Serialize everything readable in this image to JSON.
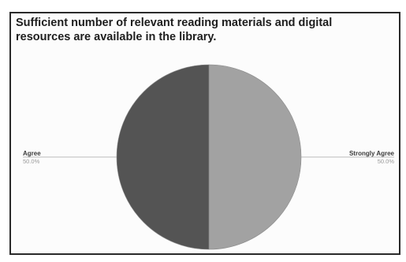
{
  "chart_data": {
    "type": "pie",
    "title": "Sufficient number of relevant reading materials and digital resources are available in the library.",
    "slices": [
      {
        "label": "Strongly Agree",
        "value": 50.0,
        "display": "50.0%",
        "color": "#a2a2a2"
      },
      {
        "label": "Agree",
        "value": 50.0,
        "display": "50.0%",
        "color": "#545454"
      }
    ],
    "start_angle_deg": 0,
    "direction": "clockwise",
    "legend": "none"
  }
}
